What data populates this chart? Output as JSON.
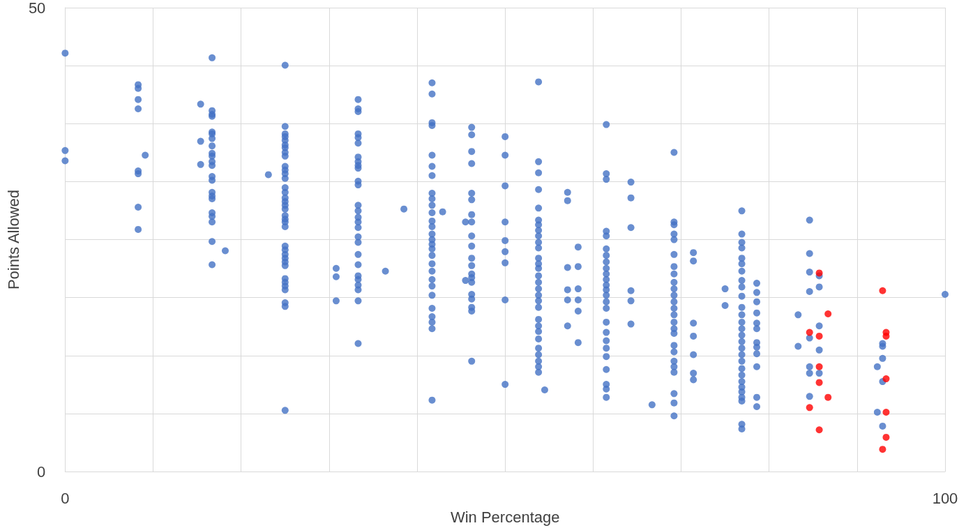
{
  "chart_data": {
    "type": "scatter",
    "xlabel": "Win Percentage",
    "ylabel": "Points Allowed",
    "xlim": [
      0,
      100
    ],
    "ylim": [
      0,
      50
    ],
    "xticks": [
      0,
      {
        "value": 10,
        "label": null
      },
      {
        "value": 20,
        "label": null
      },
      {
        "value": 30,
        "label": null
      },
      {
        "value": 40,
        "label": null
      },
      {
        "value": 50,
        "label": null
      },
      {
        "value": 60,
        "label": null
      },
      {
        "value": 70,
        "label": null
      },
      {
        "value": 80,
        "label": null
      },
      {
        "value": 90,
        "label": null
      },
      100
    ],
    "yticks": [
      0,
      {
        "value": 6.25,
        "label": null
      },
      {
        "value": 12.5,
        "label": null
      },
      {
        "value": 18.75,
        "label": null
      },
      {
        "value": 25,
        "label": null
      },
      {
        "value": 31.25,
        "label": null
      },
      {
        "value": 37.5,
        "label": null
      },
      {
        "value": 43.75,
        "label": null
      },
      50
    ],
    "grid": true,
    "marker": "circle",
    "series": [
      {
        "color": "#4472c4",
        "x": [
          0,
          0,
          0,
          8.3,
          8.3,
          8.3,
          8.3,
          8.3,
          8.3,
          8.3,
          8.3,
          9.1,
          15.4,
          15.4,
          15.4,
          16.7,
          16.7,
          16.7,
          16.7,
          16.7,
          16.7,
          16.7,
          16.7,
          16.7,
          16.7,
          16.7,
          16.7,
          16.7,
          16.7,
          16.7,
          16.7,
          16.7,
          16.7,
          16.7,
          16.7,
          16.7,
          16.7,
          18.2,
          23.1,
          25,
          25,
          25,
          25,
          25,
          25,
          25,
          25,
          25,
          25,
          25,
          25,
          25,
          25,
          25,
          25,
          25,
          25,
          25,
          25,
          25,
          25,
          25,
          25,
          25,
          25,
          25,
          25,
          25,
          25,
          25,
          25,
          25,
          25,
          25,
          25,
          30.8,
          30.8,
          30.8,
          33.3,
          33.3,
          33.3,
          33.3,
          33.3,
          33.3,
          33.3,
          33.3,
          33.3,
          33.3,
          33.3,
          33.3,
          33.3,
          33.3,
          33.3,
          33.3,
          33.3,
          33.3,
          33.3,
          33.3,
          33.3,
          33.3,
          33.3,
          33.3,
          33.3,
          33.3,
          33.3,
          36.4,
          38.5,
          41.7,
          41.7,
          41.7,
          41.7,
          41.7,
          41.7,
          41.7,
          41.7,
          41.7,
          41.7,
          41.7,
          41.7,
          41.7,
          41.7,
          41.7,
          41.7,
          41.7,
          41.7,
          41.7,
          41.7,
          41.7,
          41.7,
          41.7,
          41.7,
          41.7,
          41.7,
          41.7,
          41.7,
          42.9,
          45.5,
          45.5,
          46.2,
          46.2,
          46.2,
          46.2,
          46.2,
          46.2,
          46.2,
          46.2,
          46.2,
          46.2,
          46.2,
          46.2,
          46.2,
          46.2,
          46.2,
          46.2,
          46.2,
          46.2,
          46.2,
          46.2,
          50,
          50,
          50,
          50,
          50,
          50,
          50,
          50,
          50,
          53.8,
          53.8,
          53.8,
          53.8,
          53.8,
          53.8,
          53.8,
          53.8,
          53.8,
          53.8,
          53.8,
          53.8,
          53.8,
          53.8,
          53.8,
          53.8,
          53.8,
          53.8,
          53.8,
          53.8,
          53.8,
          53.8,
          53.8,
          53.8,
          53.8,
          53.8,
          53.8,
          53.8,
          53.8,
          54.5,
          57.1,
          57.1,
          57.1,
          57.1,
          57.1,
          57.1,
          58.3,
          58.3,
          58.3,
          58.3,
          58.3,
          58.3,
          61.5,
          61.5,
          61.5,
          61.5,
          61.5,
          61.5,
          61.5,
          61.5,
          61.5,
          61.5,
          61.5,
          61.5,
          61.5,
          61.5,
          61.5,
          61.5,
          61.5,
          61.5,
          61.5,
          61.5,
          61.5,
          61.5,
          61.5,
          61.5,
          61.5,
          64.3,
          64.3,
          64.3,
          64.3,
          64.3,
          64.3,
          66.7,
          69.2,
          69.2,
          69.2,
          69.2,
          69.2,
          69.2,
          69.2,
          69.2,
          69.2,
          69.2,
          69.2,
          69.2,
          69.2,
          69.2,
          69.2,
          69.2,
          69.2,
          69.2,
          69.2,
          69.2,
          69.2,
          69.2,
          69.2,
          69.2,
          69.2,
          71.4,
          71.4,
          71.4,
          71.4,
          71.4,
          71.4,
          71.4,
          75,
          75,
          76.9,
          76.9,
          76.9,
          76.9,
          76.9,
          76.9,
          76.9,
          76.9,
          76.9,
          76.9,
          76.9,
          76.9,
          76.9,
          76.9,
          76.9,
          76.9,
          76.9,
          76.9,
          76.9,
          76.9,
          76.9,
          76.9,
          76.9,
          76.9,
          76.9,
          76.9,
          76.9,
          76.9,
          78.6,
          78.6,
          78.6,
          78.6,
          78.6,
          78.6,
          78.6,
          78.6,
          78.6,
          78.6,
          78.6,
          78.6,
          83.3,
          83.3,
          84.6,
          84.6,
          84.6,
          84.6,
          84.6,
          84.6,
          84.6,
          84.6,
          85.7,
          85.7,
          85.7,
          85.7,
          85.7,
          92.3,
          92.3,
          92.9,
          92.9,
          92.9,
          92.9,
          92.9,
          100
        ],
        "values": [
          45.1,
          34.6,
          33.5,
          41.7,
          41.3,
          40.1,
          39.1,
          32.4,
          32.1,
          28.5,
          26.1,
          34.1,
          39.6,
          35.6,
          33.1,
          44.6,
          38.9,
          38.5,
          38.3,
          36.6,
          36.4,
          35.9,
          35.1,
          34.3,
          34,
          33.4,
          33,
          31.8,
          31.4,
          30.1,
          29.7,
          29.4,
          27.9,
          27.5,
          26.9,
          24.8,
          22.3,
          23.8,
          32,
          43.8,
          37.2,
          36.4,
          36.1,
          35.7,
          35.2,
          34.9,
          34.4,
          34,
          32.9,
          32.5,
          32.1,
          31.6,
          30.6,
          30.1,
          29.5,
          29.1,
          28.7,
          28.3,
          27.6,
          27.2,
          26.9,
          26.4,
          24.3,
          23.9,
          23.4,
          23,
          22.6,
          22.2,
          20.8,
          20.4,
          20,
          19.6,
          18.2,
          17.8,
          6.6,
          21.9,
          21,
          18.4,
          40.1,
          39.1,
          38.8,
          36.4,
          36,
          35.4,
          33.9,
          33.4,
          33,
          32.7,
          31.3,
          30.9,
          28.7,
          28.1,
          27.4,
          26.9,
          26.3,
          25.3,
          24.7,
          23.4,
          22.3,
          21.1,
          20.7,
          20.1,
          19.6,
          18.4,
          13.8,
          21.6,
          28.3,
          41.9,
          40.7,
          37.6,
          37.3,
          34.1,
          32.9,
          31.9,
          30,
          29.4,
          28.7,
          27.9,
          27,
          26.4,
          25.6,
          25,
          24.5,
          24,
          23.3,
          22.4,
          21.6,
          20.7,
          20,
          19,
          17.6,
          16.7,
          16.1,
          15.4,
          7.7,
          28,
          26.9,
          20.6,
          37.1,
          36.3,
          34.5,
          33.2,
          30,
          29.3,
          27.7,
          26.9,
          25.4,
          24.3,
          23,
          22.2,
          21.3,
          20.9,
          20.4,
          19.1,
          18.6,
          17.7,
          17.3,
          11.9,
          36.1,
          34.1,
          30.8,
          26.9,
          24.9,
          23.7,
          22.5,
          18.5,
          9.4,
          42,
          33.4,
          32.2,
          30.4,
          28.4,
          27.1,
          26.6,
          26,
          25.4,
          24.7,
          24.1,
          23,
          22.4,
          21.9,
          21.1,
          20.4,
          19.7,
          19,
          18.4,
          17.7,
          16.4,
          15.7,
          15.1,
          14.3,
          13.3,
          12.6,
          11.9,
          11.3,
          10.7,
          8.8,
          30.1,
          29.2,
          22,
          19.6,
          18.5,
          15.7,
          24.2,
          22.1,
          19.7,
          18.5,
          17.3,
          13.9,
          37.4,
          32.1,
          31.5,
          25.9,
          25.4,
          24,
          23.3,
          22.6,
          21.9,
          21.3,
          20.7,
          20.1,
          19.6,
          19,
          18.3,
          17.6,
          16.1,
          15,
          14.1,
          13.3,
          12.4,
          11,
          9.4,
          8.9,
          8,
          31.2,
          29.5,
          26.3,
          19.5,
          18.4,
          15.9,
          7.2,
          34.4,
          26.9,
          26.6,
          25.6,
          25,
          23.4,
          22.1,
          21.3,
          20.4,
          19.7,
          19,
          18.3,
          17.6,
          16.9,
          16.1,
          15.4,
          14.9,
          13.6,
          12.9,
          11.9,
          11.3,
          10.7,
          8.4,
          7.4,
          6,
          23.6,
          22.7,
          16,
          14.6,
          12.6,
          10.6,
          9.9,
          19.7,
          17.9,
          28.1,
          25.6,
          24.7,
          24.1,
          23,
          22.4,
          21.6,
          20.6,
          19.9,
          18.9,
          17.7,
          16.9,
          16.1,
          15.4,
          14.7,
          14,
          13.3,
          12.6,
          11.9,
          11.1,
          10.4,
          9.7,
          9.1,
          8.6,
          8,
          7.6,
          5.1,
          4.6,
          20.3,
          19.3,
          18.3,
          17.1,
          16,
          15.4,
          13.9,
          13.4,
          12.7,
          11.3,
          8,
          7,
          16.9,
          13.5,
          27.1,
          23.5,
          21.5,
          19.4,
          14.4,
          11.3,
          10.6,
          8.1,
          21.1,
          19.9,
          15.7,
          13.1,
          10.6,
          11.3,
          6.4,
          13.8,
          13.5,
          12.2,
          9.7,
          4.9,
          19.1
        ]
      },
      {
        "color": "#ff0000",
        "x": [
          84.6,
          84.6,
          85.7,
          85.7,
          85.7,
          85.7,
          85.7,
          86.7,
          86.7,
          92.9,
          92.9,
          93.3,
          93.3,
          93.3,
          93.3,
          93.3
        ],
        "values": [
          15,
          6.9,
          21.4,
          14.6,
          11.3,
          9.6,
          4.5,
          17,
          8,
          19.5,
          2.4,
          15,
          14.6,
          10,
          6.4,
          3.7
        ]
      }
    ]
  }
}
